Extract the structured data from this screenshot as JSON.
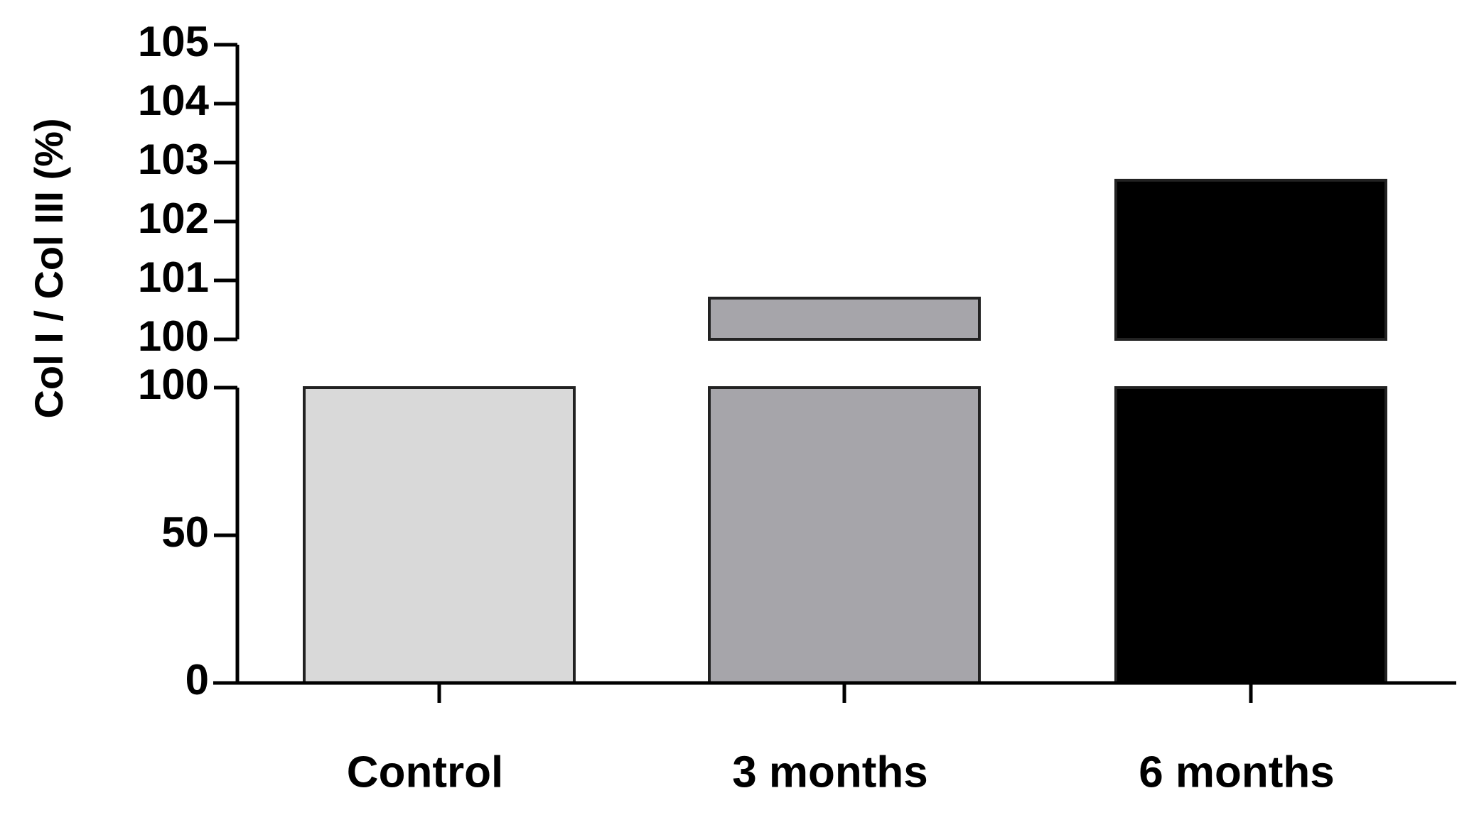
{
  "chart_data": {
    "type": "bar",
    "y_label": "Col I / Col III (%)",
    "categories": [
      "Control",
      "3 months",
      "6 months"
    ],
    "values": [
      100,
      100.7,
      102.7
    ],
    "colors": [
      "#d9d9d9",
      "#a6a5aa",
      "#000000"
    ],
    "y_segments": [
      {
        "ylim": [
          0,
          100
        ],
        "yticks": [
          0,
          50,
          100
        ]
      },
      {
        "ylim": [
          100,
          105
        ],
        "yticks": [
          100,
          101,
          102,
          103,
          104,
          105
        ]
      }
    ]
  }
}
